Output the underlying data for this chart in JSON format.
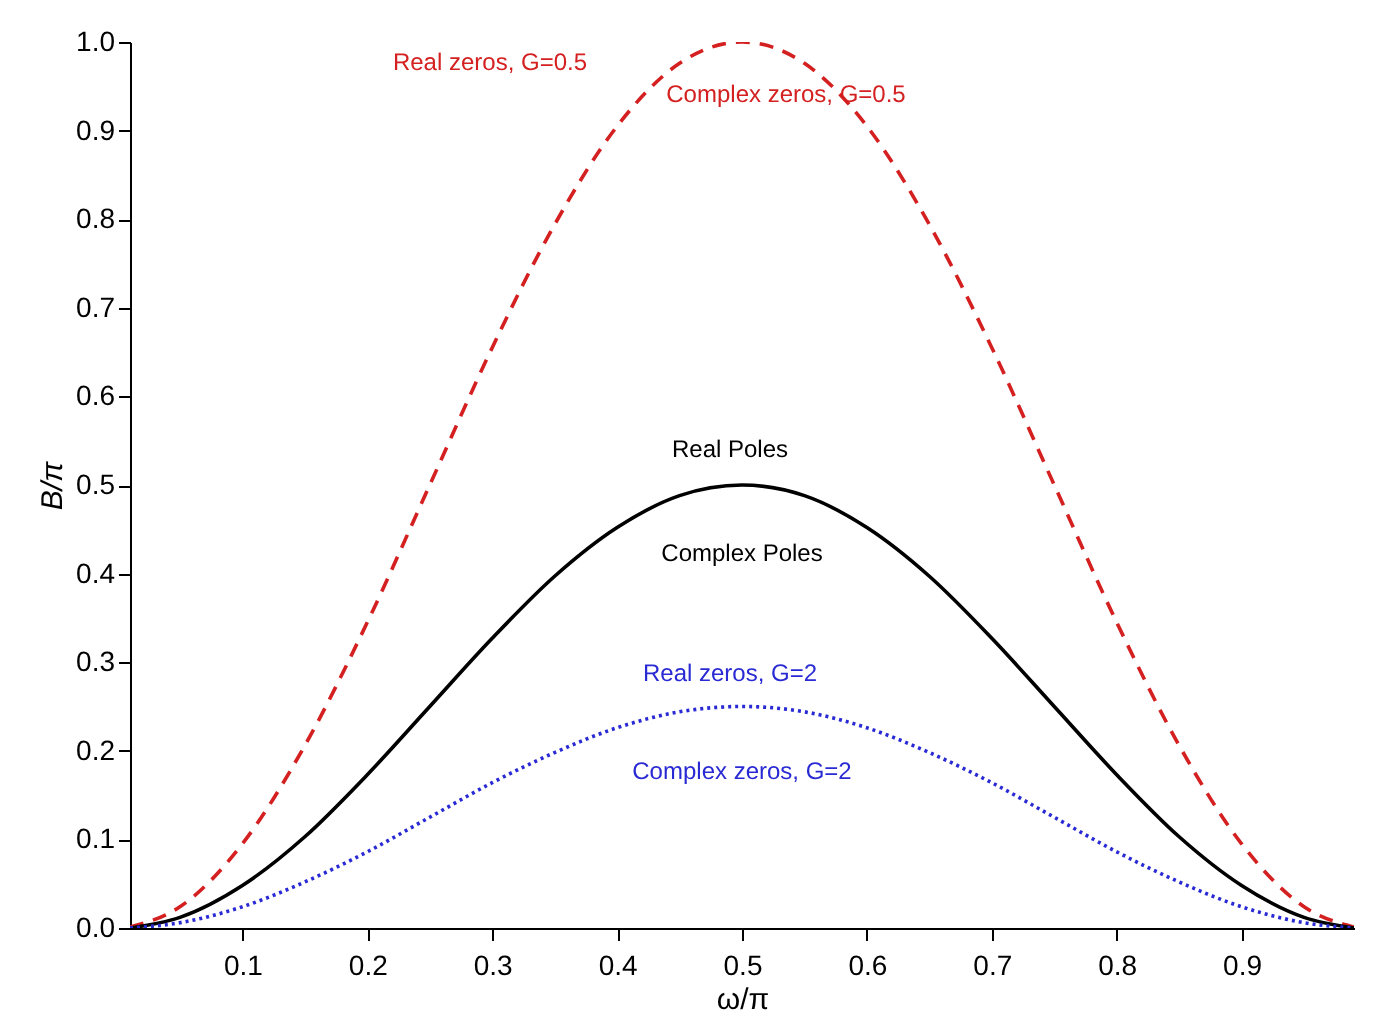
{
  "chart_data": {
    "type": "line",
    "xlabel": "ω/π",
    "ylabel": "B/π",
    "x": [
      0.01,
      0.05,
      0.1,
      0.15,
      0.2,
      0.25,
      0.3,
      0.35,
      0.4,
      0.45,
      0.5,
      0.55,
      0.6,
      0.65,
      0.7,
      0.75,
      0.8,
      0.85,
      0.9,
      0.95,
      0.99
    ],
    "series": [
      {
        "color": "#d42020",
        "line_style": "dashed",
        "values": [
          0.001,
          0.024,
          0.095,
          0.206,
          0.345,
          0.5,
          0.655,
          0.794,
          0.905,
          0.976,
          1.0,
          0.976,
          0.905,
          0.794,
          0.655,
          0.5,
          0.345,
          0.206,
          0.095,
          0.024,
          0.001
        ]
      },
      {
        "color": "#000000",
        "line_style": "solid",
        "values": [
          0.0,
          0.012,
          0.048,
          0.103,
          0.173,
          0.25,
          0.327,
          0.397,
          0.452,
          0.488,
          0.5,
          0.488,
          0.452,
          0.397,
          0.327,
          0.25,
          0.173,
          0.103,
          0.048,
          0.012,
          0.0
        ]
      },
      {
        "color": "#2a2ad4",
        "line_style": "dotted",
        "values": [
          0.0,
          0.006,
          0.024,
          0.052,
          0.086,
          0.125,
          0.164,
          0.198,
          0.226,
          0.244,
          0.25,
          0.244,
          0.226,
          0.198,
          0.164,
          0.125,
          0.086,
          0.052,
          0.024,
          0.006,
          0.0
        ]
      }
    ],
    "annotations": [
      "Real zeros, G=0.5",
      "Complex zeros, G=0.5",
      "Real Poles",
      "Complex Poles",
      "Real zeros, G=2",
      "Complex zeros, G=2"
    ],
    "xlim": [
      0.01,
      0.99
    ],
    "xticks": [
      0.1,
      0.2,
      0.3,
      0.4,
      0.5,
      0.6,
      0.7,
      0.8,
      0.9
    ],
    "ylim": [
      0,
      1
    ],
    "yticks": [
      {
        "value": 0,
        "label": "0.0"
      },
      0.1,
      0.2,
      0.3,
      0.4,
      0.5,
      0.6,
      0.7,
      0.8,
      0.9,
      {
        "value": 1,
        "label": "1.0"
      }
    ],
    "marker": "none"
  }
}
